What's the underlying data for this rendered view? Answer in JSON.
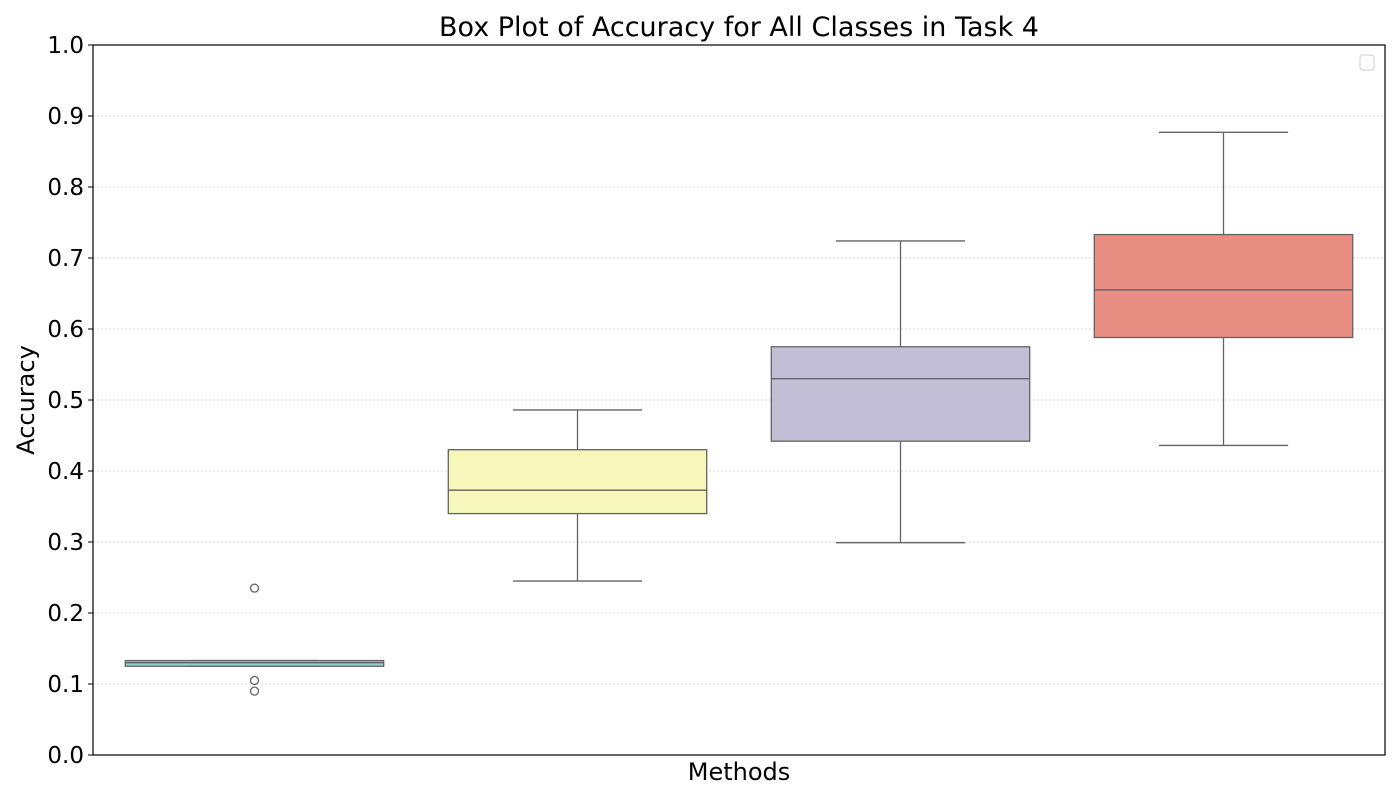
{
  "chart_data": {
    "type": "box",
    "title": "Box Plot of Accuracy for All Classes in Task 4",
    "xlabel": "Methods",
    "ylabel": "Accuracy",
    "ylim": [
      0.0,
      1.0
    ],
    "yticks": [
      "0.0",
      "0.1",
      "0.2",
      "0.3",
      "0.4",
      "0.5",
      "0.6",
      "0.7",
      "0.8",
      "0.9",
      "1.0"
    ],
    "grid": "horizontal-dotted",
    "legend": "top-right-empty",
    "boxes": [
      {
        "color": "#8dd3c7",
        "whisker_low": 0.125,
        "q1": 0.125,
        "median": 0.13,
        "q3": 0.133,
        "whisker_high": 0.133,
        "outliers": [
          0.235,
          0.105,
          0.09
        ]
      },
      {
        "color": "#f7f6bb",
        "whisker_low": 0.245,
        "q1": 0.34,
        "median": 0.373,
        "q3": 0.43,
        "whisker_high": 0.486,
        "outliers": []
      },
      {
        "color": "#c2bed6",
        "whisker_low": 0.299,
        "q1": 0.442,
        "median": 0.53,
        "q3": 0.575,
        "whisker_high": 0.724,
        "outliers": []
      },
      {
        "color": "#e98e82",
        "whisker_low": 0.436,
        "q1": 0.588,
        "median": 0.655,
        "q3": 0.733,
        "whisker_high": 0.877,
        "outliers": []
      }
    ]
  }
}
